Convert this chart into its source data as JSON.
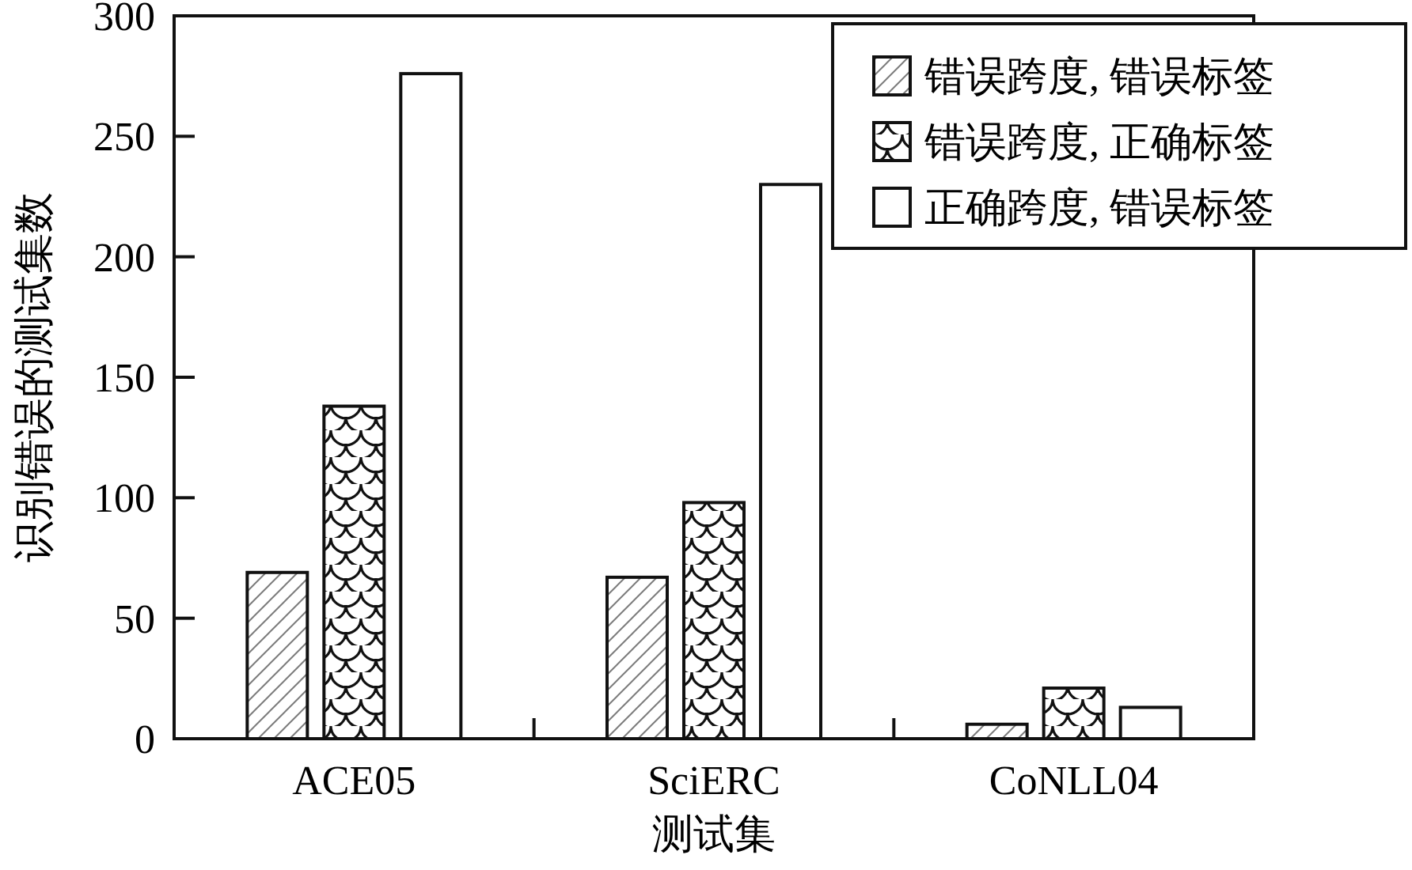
{
  "chart_data": {
    "type": "bar",
    "xlabel": "测试集",
    "ylabel": "识别错误的测试集数",
    "categories": [
      "ACE05",
      "SciERC",
      "CoNLL04"
    ],
    "series": [
      {
        "name": "错误跨度, 错误标签",
        "color": "#111111",
        "values": [
          69,
          67,
          6
        ]
      },
      {
        "name": "错误跨度, 正确标签",
        "color": "#111111",
        "values": [
          138,
          98,
          21
        ]
      },
      {
        "name": "正确跨度, 错误标签",
        "color": "#ffffff",
        "values": [
          276,
          230,
          13
        ]
      }
    ],
    "ylim": [
      0,
      300
    ],
    "yticks": [
      0,
      50,
      100,
      150,
      200,
      250,
      300
    ],
    "legend": "top right",
    "grid": false
  }
}
